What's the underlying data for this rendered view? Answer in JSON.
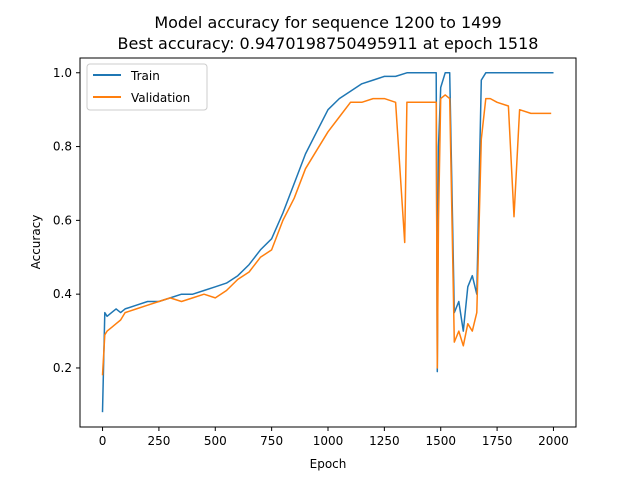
{
  "chart_data": {
    "type": "line",
    "title_line1": "Model accuracy for sequence 1200 to 1499",
    "title_line2": "Best accuracy: 0.9470198750495911 at epoch 1518",
    "xlabel": "Epoch",
    "ylabel": "Accuracy",
    "xlim": [
      -100,
      2100
    ],
    "ylim": [
      0.04,
      1.04
    ],
    "xticks": [
      0,
      250,
      500,
      750,
      1000,
      1250,
      1500,
      1750,
      2000
    ],
    "yticks": [
      0.2,
      0.4,
      0.6,
      0.8,
      1.0
    ],
    "ytick_labels": [
      "0.2",
      "0.4",
      "0.6",
      "0.8",
      "1.0"
    ],
    "legend_position": "top-left",
    "grid": false,
    "series": [
      {
        "name": "Train",
        "color": "#1f77b4",
        "x": [
          0,
          10,
          20,
          40,
          60,
          80,
          100,
          150,
          200,
          250,
          300,
          350,
          400,
          450,
          500,
          550,
          600,
          650,
          700,
          750,
          800,
          850,
          900,
          950,
          1000,
          1050,
          1100,
          1150,
          1200,
          1250,
          1300,
          1350,
          1400,
          1450,
          1480,
          1485,
          1490,
          1500,
          1520,
          1540,
          1560,
          1580,
          1600,
          1620,
          1640,
          1660,
          1680,
          1700,
          1720,
          1750,
          1800,
          1850,
          1900,
          1950,
          2000
        ],
        "y": [
          0.08,
          0.35,
          0.34,
          0.35,
          0.36,
          0.35,
          0.36,
          0.37,
          0.38,
          0.38,
          0.39,
          0.4,
          0.4,
          0.41,
          0.42,
          0.43,
          0.45,
          0.48,
          0.52,
          0.55,
          0.62,
          0.7,
          0.78,
          0.84,
          0.9,
          0.93,
          0.95,
          0.97,
          0.98,
          0.99,
          0.99,
          1.0,
          1.0,
          1.0,
          1.0,
          0.19,
          0.8,
          0.96,
          1.0,
          1.0,
          0.35,
          0.38,
          0.3,
          0.42,
          0.45,
          0.4,
          0.98,
          1.0,
          1.0,
          1.0,
          1.0,
          1.0,
          1.0,
          1.0,
          1.0
        ]
      },
      {
        "name": "Validation",
        "color": "#ff7f0e",
        "x": [
          0,
          10,
          20,
          40,
          60,
          80,
          100,
          150,
          200,
          250,
          300,
          350,
          400,
          450,
          500,
          550,
          600,
          650,
          700,
          750,
          800,
          850,
          900,
          950,
          1000,
          1050,
          1100,
          1150,
          1200,
          1250,
          1300,
          1340,
          1350,
          1400,
          1450,
          1480,
          1485,
          1490,
          1500,
          1520,
          1540,
          1560,
          1580,
          1600,
          1620,
          1640,
          1660,
          1680,
          1700,
          1720,
          1750,
          1800,
          1825,
          1850,
          1900,
          1950,
          1990
        ],
        "y": [
          0.18,
          0.29,
          0.3,
          0.31,
          0.32,
          0.33,
          0.35,
          0.36,
          0.37,
          0.38,
          0.39,
          0.38,
          0.39,
          0.4,
          0.39,
          0.41,
          0.44,
          0.46,
          0.5,
          0.52,
          0.6,
          0.66,
          0.74,
          0.79,
          0.84,
          0.88,
          0.92,
          0.92,
          0.93,
          0.93,
          0.92,
          0.54,
          0.92,
          0.92,
          0.92,
          0.92,
          0.2,
          0.6,
          0.93,
          0.94,
          0.93,
          0.27,
          0.3,
          0.26,
          0.32,
          0.3,
          0.35,
          0.82,
          0.93,
          0.93,
          0.92,
          0.91,
          0.61,
          0.9,
          0.89,
          0.89,
          0.89
        ]
      }
    ]
  }
}
